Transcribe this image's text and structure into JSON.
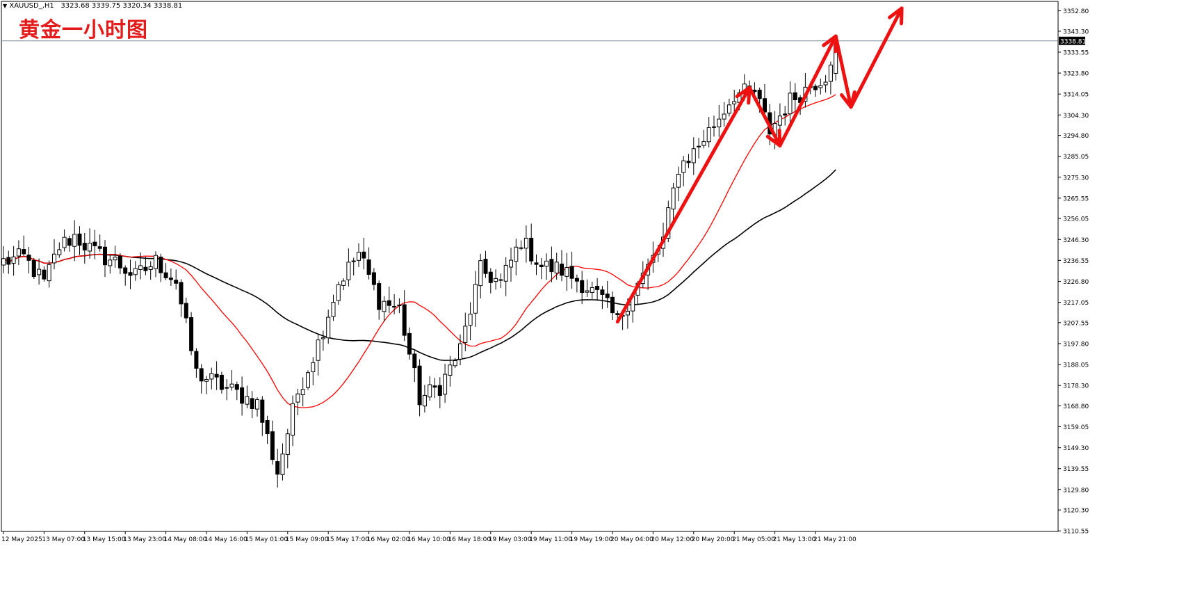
{
  "header": {
    "symbol_text": "XAUUSD_,H1",
    "ohlc_text": "3323.68 3339.75 3320.34 3338.81"
  },
  "overlay_title": "黄金一小时图",
  "colors": {
    "background": "#ffffff",
    "axis": "#000000",
    "candle_bull_fill": "#ffffff",
    "candle_bear_fill": "#000000",
    "ma_fast": "#ff0000",
    "ma_slow": "#000000",
    "annotation": "#ee1111",
    "price_line": "#778899"
  },
  "chart_data": {
    "type": "candlestick",
    "title": "",
    "ylim": [
      3110.3,
      3357.2
    ],
    "y_ticks": [
      "3352.80",
      "3343.30",
      "3333.55",
      "3323.80",
      "3314.05",
      "3304.30",
      "3294.80",
      "3285.05",
      "3275.30",
      "3265.55",
      "3256.05",
      "3246.30",
      "3236.55",
      "3226.80",
      "3217.05",
      "3207.55",
      "3197.80",
      "3188.05",
      "3178.30",
      "3168.80",
      "3159.05",
      "3149.30",
      "3139.55",
      "3129.80",
      "3120.30",
      "3110.55"
    ],
    "current_price_label": "3338.81",
    "current_price": 3338.81,
    "x_tick_labels": [
      "12 May 2025",
      "13 May 07:00",
      "13 May 15:00",
      "13 May 23:00",
      "14 May 08:00",
      "14 May 16:00",
      "15 May 01:00",
      "15 May 09:00",
      "15 May 17:00",
      "16 May 02:00",
      "16 May 10:00",
      "16 May 18:00",
      "19 May 03:00",
      "19 May 11:00",
      "19 May 19:00",
      "20 May 04:00",
      "20 May 12:00",
      "20 May 20:00",
      "21 May 05:00",
      "21 May 13:00",
      "21 May 21:00"
    ],
    "x_tick_index": [
      0,
      8,
      16,
      24,
      32,
      40,
      48,
      56,
      64,
      72,
      80,
      88,
      96,
      104,
      112,
      120,
      128,
      136,
      144,
      152,
      160
    ],
    "close_anchors": [
      [
        0,
        3236
      ],
      [
        4,
        3238
      ],
      [
        8,
        3226
      ],
      [
        11,
        3243
      ],
      [
        14,
        3248
      ],
      [
        18,
        3240
      ],
      [
        22,
        3236
      ],
      [
        26,
        3229
      ],
      [
        30,
        3236
      ],
      [
        34,
        3227
      ],
      [
        38,
        3184
      ],
      [
        44,
        3177
      ],
      [
        50,
        3170
      ],
      [
        54,
        3138
      ],
      [
        58,
        3175
      ],
      [
        62,
        3198
      ],
      [
        66,
        3226
      ],
      [
        70,
        3240
      ],
      [
        74,
        3218
      ],
      [
        78,
        3214
      ],
      [
        82,
        3172
      ],
      [
        86,
        3178
      ],
      [
        90,
        3195
      ],
      [
        94,
        3232
      ],
      [
        98,
        3226
      ],
      [
        102,
        3246
      ],
      [
        106,
        3234
      ],
      [
        110,
        3232
      ],
      [
        114,
        3226
      ],
      [
        118,
        3218
      ],
      [
        121,
        3208
      ],
      [
        124,
        3222
      ],
      [
        127,
        3233
      ],
      [
        130,
        3246
      ],
      [
        133,
        3280
      ],
      [
        136,
        3287
      ],
      [
        140,
        3300
      ],
      [
        144,
        3314
      ],
      [
        148,
        3315
      ],
      [
        151,
        3297
      ],
      [
        155,
        3311
      ],
      [
        159,
        3318
      ],
      [
        162,
        3323
      ],
      [
        164,
        3338.81
      ]
    ],
    "ma_fast": {
      "period": 20,
      "color": "#ff0000"
    },
    "ma_slow": {
      "period": 50,
      "color": "#000000"
    },
    "annotations": [
      {
        "type": "arrow",
        "points": [
          [
            121,
            3208
          ],
          [
            147,
            3317
          ]
        ]
      },
      {
        "type": "arrow",
        "points": [
          [
            147,
            3317
          ],
          [
            153,
            3290
          ]
        ]
      },
      {
        "type": "arrow",
        "points": [
          [
            153,
            3290
          ],
          [
            164,
            3341
          ]
        ]
      },
      {
        "type": "arrow",
        "points": [
          [
            164,
            3341
          ],
          [
            167,
            3308
          ]
        ]
      },
      {
        "type": "arrow",
        "points": [
          [
            167,
            3308
          ],
          [
            177,
            3354
          ]
        ]
      }
    ]
  }
}
